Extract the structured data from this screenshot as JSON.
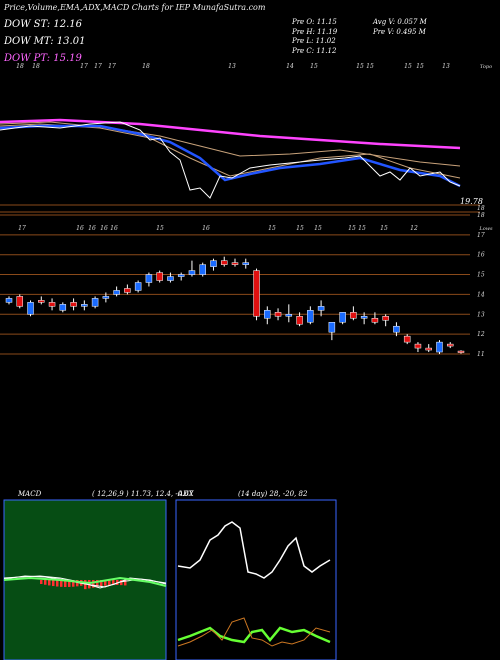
{
  "title": "Price,Volume,EMA,ADX,MACD Charts for IEP MunafaSutra.com",
  "dow": [
    {
      "label": "DOW ST:",
      "value": "12.16",
      "color": "#ffffff"
    },
    {
      "label": "DOW MT:",
      "value": "13.01",
      "color": "#ffffff"
    },
    {
      "label": "DOW PT:",
      "value": "15.19",
      "color": "#ff66ff"
    }
  ],
  "stats_left": [
    {
      "label": "Pre O:",
      "value": "11.15"
    },
    {
      "label": "Pre H:",
      "value": "11.19"
    },
    {
      "label": "Pre L:",
      "value": "11.02"
    },
    {
      "label": "Pre C:",
      "value": "11.12"
    }
  ],
  "stats_right": [
    {
      "label": "Avg V:",
      "value": "0.057 M"
    },
    {
      "label": "Pre V:",
      "value": "0.495 M"
    }
  ],
  "colors": {
    "up": "#1a6bff",
    "down": "#e01010",
    "ema_long": "#ff44ff",
    "ema_mid": "#c8a27a",
    "ema_short": "#2255ff",
    "grid": "#8a4a1a",
    "macd_panel": "#064d14",
    "adx_panel": "#000000",
    "panel_border": "#3a66ff"
  },
  "chart_data": [
    {
      "type": "line",
      "name": "ema-panel",
      "top_labels": [
        "18",
        "18",
        "17",
        "17",
        "17",
        "18",
        "13",
        "14",
        "15",
        "15",
        "15",
        "15",
        "15",
        "13",
        "Topo"
      ],
      "bottom_labels": [
        "17",
        "16",
        "16",
        "16",
        "16",
        "15",
        "16",
        "15",
        "15",
        "15",
        "15",
        "15",
        "15",
        "12",
        "Lows"
      ],
      "y_tick": "19.78",
      "series": []
    },
    {
      "type": "candlestick",
      "name": "price-panel",
      "y_ticks": [
        "18",
        "17",
        "16",
        "15",
        "14",
        "13",
        "12",
        "11"
      ],
      "ylim": [
        10.7,
        18.4
      ],
      "candles": [
        {
          "o": 13.6,
          "h": 13.9,
          "l": 13.5,
          "c": 13.8
        },
        {
          "o": 13.9,
          "h": 14.0,
          "l": 13.3,
          "c": 13.4
        },
        {
          "o": 13.0,
          "h": 13.7,
          "l": 12.9,
          "c": 13.6
        },
        {
          "o": 13.7,
          "h": 13.9,
          "l": 13.5,
          "c": 13.6
        },
        {
          "o": 13.6,
          "h": 13.8,
          "l": 13.2,
          "c": 13.4
        },
        {
          "o": 13.2,
          "h": 13.6,
          "l": 13.1,
          "c": 13.5
        },
        {
          "o": 13.6,
          "h": 13.8,
          "l": 13.2,
          "c": 13.4
        },
        {
          "o": 13.4,
          "h": 13.7,
          "l": 13.2,
          "c": 13.5
        },
        {
          "o": 13.4,
          "h": 13.9,
          "l": 13.3,
          "c": 13.8
        },
        {
          "o": 13.8,
          "h": 14.1,
          "l": 13.6,
          "c": 13.9
        },
        {
          "o": 14.0,
          "h": 14.4,
          "l": 13.9,
          "c": 14.2
        },
        {
          "o": 14.3,
          "h": 14.5,
          "l": 14.0,
          "c": 14.1
        },
        {
          "o": 14.2,
          "h": 14.7,
          "l": 14.1,
          "c": 14.6
        },
        {
          "o": 14.6,
          "h": 15.1,
          "l": 14.4,
          "c": 15.0
        },
        {
          "o": 15.1,
          "h": 15.2,
          "l": 14.6,
          "c": 14.7
        },
        {
          "o": 14.7,
          "h": 15.1,
          "l": 14.6,
          "c": 14.9
        },
        {
          "o": 14.9,
          "h": 15.1,
          "l": 14.7,
          "c": 15.0
        },
        {
          "o": 15.0,
          "h": 15.7,
          "l": 14.9,
          "c": 15.2
        },
        {
          "o": 15.0,
          "h": 15.6,
          "l": 14.9,
          "c": 15.5
        },
        {
          "o": 15.4,
          "h": 15.8,
          "l": 15.2,
          "c": 15.7
        },
        {
          "o": 15.7,
          "h": 15.9,
          "l": 15.4,
          "c": 15.5
        },
        {
          "o": 15.6,
          "h": 15.8,
          "l": 15.4,
          "c": 15.5
        },
        {
          "o": 15.5,
          "h": 15.8,
          "l": 15.3,
          "c": 15.6
        },
        {
          "o": 15.2,
          "h": 15.3,
          "l": 12.7,
          "c": 12.9
        },
        {
          "o": 12.8,
          "h": 13.4,
          "l": 12.5,
          "c": 13.2
        },
        {
          "o": 13.1,
          "h": 13.3,
          "l": 12.7,
          "c": 12.9
        },
        {
          "o": 12.9,
          "h": 13.5,
          "l": 12.6,
          "c": 13.0
        },
        {
          "o": 12.9,
          "h": 13.1,
          "l": 12.4,
          "c": 12.5
        },
        {
          "o": 12.6,
          "h": 13.4,
          "l": 12.5,
          "c": 13.2
        },
        {
          "o": 13.2,
          "h": 13.7,
          "l": 12.9,
          "c": 13.4
        },
        {
          "o": 12.1,
          "h": 12.6,
          "l": 11.7,
          "c": 12.6
        },
        {
          "o": 12.6,
          "h": 13.1,
          "l": 12.5,
          "c": 13.1
        },
        {
          "o": 13.1,
          "h": 13.4,
          "l": 12.7,
          "c": 12.8
        },
        {
          "o": 12.8,
          "h": 13.1,
          "l": 12.5,
          "c": 12.9
        },
        {
          "o": 12.8,
          "h": 13.1,
          "l": 12.5,
          "c": 12.6
        },
        {
          "o": 12.9,
          "h": 13.0,
          "l": 12.4,
          "c": 12.7
        },
        {
          "o": 12.1,
          "h": 12.6,
          "l": 11.9,
          "c": 12.4
        },
        {
          "o": 11.9,
          "h": 12.0,
          "l": 11.5,
          "c": 11.6
        },
        {
          "o": 11.5,
          "h": 11.6,
          "l": 11.1,
          "c": 11.3
        },
        {
          "o": 11.3,
          "h": 11.5,
          "l": 11.1,
          "c": 11.2
        },
        {
          "o": 11.1,
          "h": 11.7,
          "l": 11.0,
          "c": 11.6
        },
        {
          "o": 11.5,
          "h": 11.6,
          "l": 11.3,
          "c": 11.4
        },
        {
          "o": 11.15,
          "h": 11.19,
          "l": 11.02,
          "c": 11.12
        }
      ]
    },
    {
      "type": "line",
      "name": "macd-panel",
      "title": "MACD",
      "params": "( 12,26,9 ) 11.73,  12.4,  -0.67",
      "ylim": [
        -3,
        3
      ]
    },
    {
      "type": "line",
      "name": "adx-panel",
      "title": "ADX",
      "params": "(14 day) 28,  -20,  82",
      "ylim": [
        0,
        100
      ]
    }
  ]
}
